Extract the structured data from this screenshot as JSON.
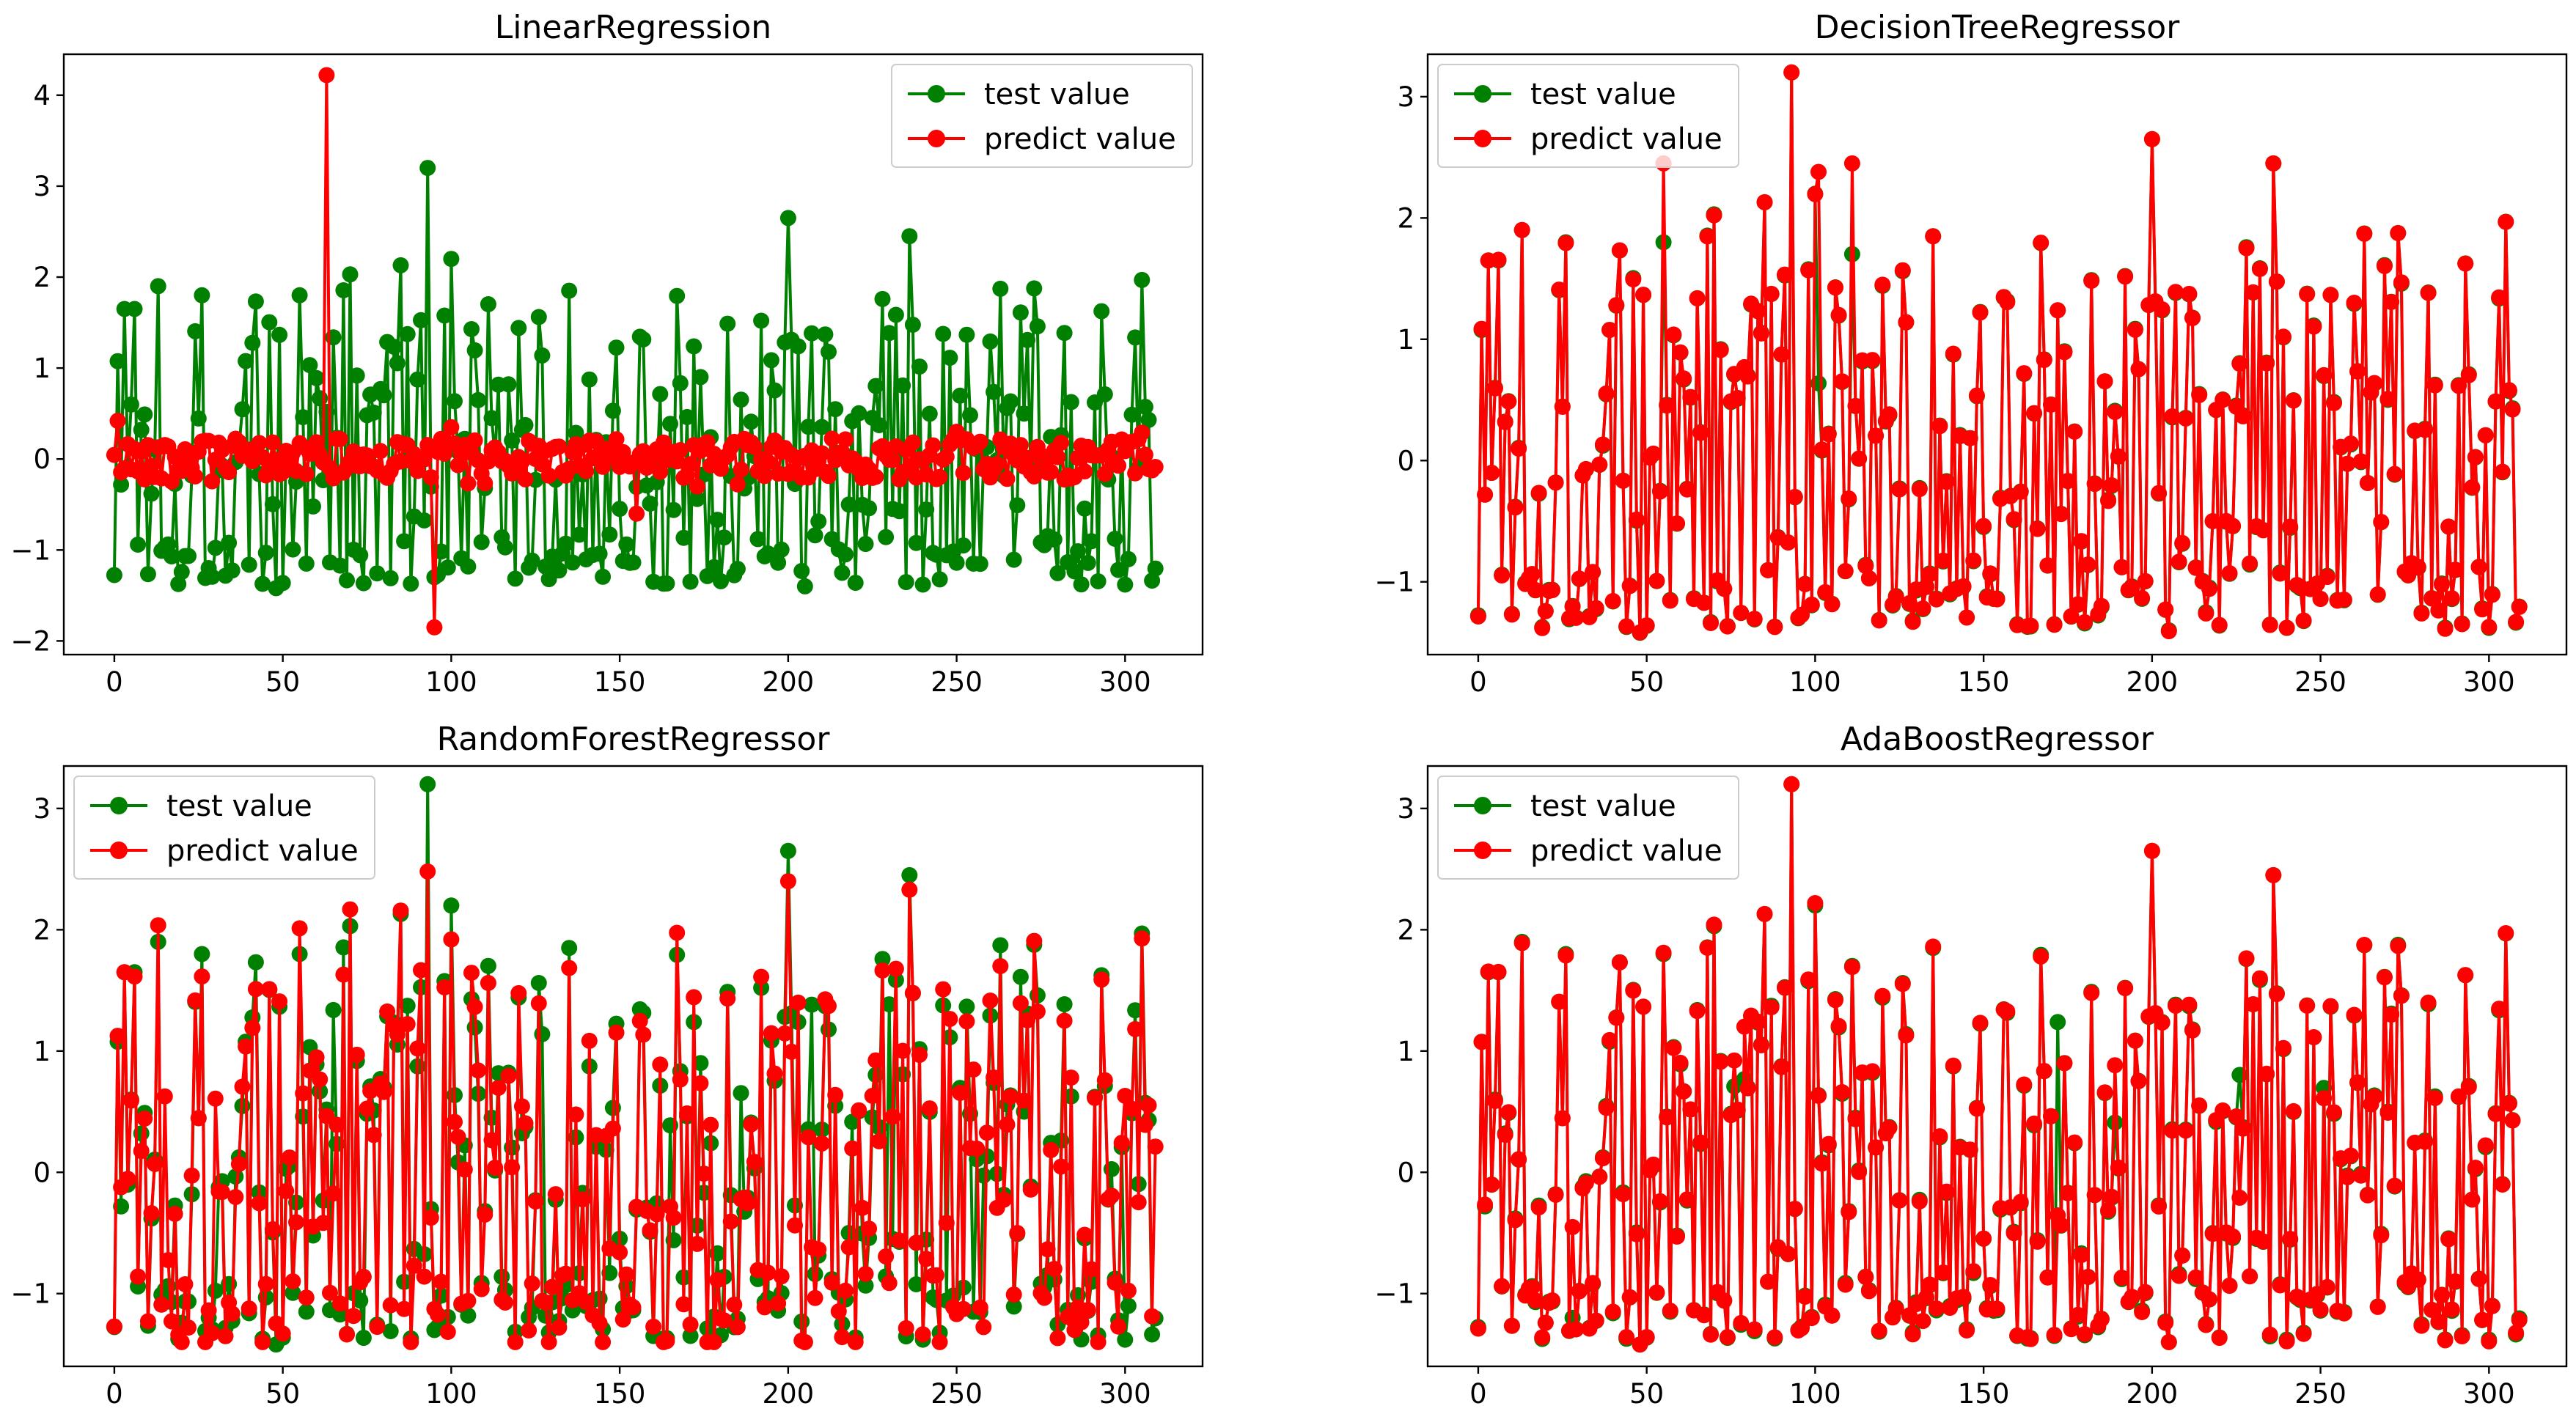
{
  "figure": {
    "colors": {
      "test": "#008000",
      "predict": "#ff0000"
    }
  },
  "chart_data": [
    {
      "type": "line",
      "title": "LinearRegression",
      "xlabel": "",
      "ylabel": "",
      "xlim": [
        -15,
        323
      ],
      "ylim": [
        -2.15,
        4.45
      ],
      "xticks": [
        0,
        50,
        100,
        150,
        200,
        250,
        300
      ],
      "yticks": [
        -2,
        -1,
        0,
        1,
        2,
        3,
        4
      ],
      "legend": "top-right",
      "n_points": 310,
      "series": [
        {
          "name": "test value",
          "color": "#008000",
          "marker": "circle",
          "highlights": [
            [
              3,
              1.65
            ],
            [
              6,
              1.65
            ],
            [
              13,
              1.9
            ],
            [
              26,
              1.8
            ],
            [
              55,
              1.8
            ],
            [
              70,
              2.03
            ],
            [
              85,
              2.13
            ],
            [
              93,
              3.2
            ],
            [
              100,
              2.2
            ],
            [
              135,
              1.85
            ],
            [
              200,
              2.65
            ],
            [
              236,
              2.45
            ],
            [
              48,
              -1.42
            ],
            [
              95,
              -1.3
            ],
            [
              160,
              -1.35
            ],
            [
              205,
              -1.4
            ],
            [
              240,
              -1.38
            ],
            [
              300,
              -1.38
            ]
          ],
          "range": [
            -1.42,
            3.2
          ]
        },
        {
          "name": "predict value",
          "color": "#ff0000",
          "marker": "circle",
          "highlights": [
            [
              63,
              4.22
            ],
            [
              95,
              -1.85
            ],
            [
              1,
              0.42
            ],
            [
              155,
              -0.6
            ],
            [
              100,
              0.35
            ],
            [
              250,
              0.3
            ]
          ],
          "range": [
            -1.85,
            4.22
          ]
        }
      ]
    },
    {
      "type": "line",
      "title": "DecisionTreeRegressor",
      "xlabel": "",
      "ylabel": "",
      "xlim": [
        -15,
        323
      ],
      "ylim": [
        -1.6,
        3.35
      ],
      "xticks": [
        0,
        50,
        100,
        150,
        200,
        250,
        300
      ],
      "yticks": [
        -1,
        0,
        1,
        2,
        3
      ],
      "legend": "top-left",
      "n_points": 310,
      "series": [
        {
          "name": "test value",
          "color": "#008000",
          "marker": "circle",
          "range": [
            -1.42,
            3.2
          ]
        },
        {
          "name": "predict value",
          "color": "#ff0000",
          "marker": "circle",
          "highlights": [
            [
              93,
              3.2
            ],
            [
              200,
              2.65
            ],
            [
              55,
              2.45
            ],
            [
              236,
              2.45
            ],
            [
              111,
              2.45
            ],
            [
              101,
              2.38
            ]
          ],
          "range": [
            -1.42,
            3.2
          ]
        }
      ]
    },
    {
      "type": "line",
      "title": "RandomForestRegressor",
      "xlabel": "",
      "ylabel": "",
      "xlim": [
        -15,
        323
      ],
      "ylim": [
        -1.6,
        3.35
      ],
      "xticks": [
        0,
        50,
        100,
        150,
        200,
        250,
        300
      ],
      "yticks": [
        -1,
        0,
        1,
        2,
        3
      ],
      "legend": "top-left",
      "n_points": 310,
      "series": [
        {
          "name": "test value",
          "color": "#008000",
          "marker": "circle",
          "highlights": [
            [
              93,
              3.2
            ],
            [
              200,
              2.65
            ],
            [
              236,
              2.47
            ],
            [
              100,
              2.2
            ],
            [
              85,
              2.13
            ],
            [
              70,
              2.03
            ]
          ],
          "range": [
            -1.42,
            3.2
          ]
        },
        {
          "name": "predict value",
          "color": "#ff0000",
          "marker": "circle",
          "highlights": [
            [
              93,
              2.48
            ],
            [
              200,
              2.4
            ],
            [
              236,
              2.33
            ],
            [
              100,
              1.92
            ],
            [
              3,
              1.65
            ]
          ],
          "range": [
            -1.4,
            2.48
          ]
        }
      ]
    },
    {
      "type": "line",
      "title": "AdaBoostRegressor",
      "xlabel": "",
      "ylabel": "",
      "xlim": [
        -15,
        323
      ],
      "ylim": [
        -1.6,
        3.35
      ],
      "xticks": [
        0,
        50,
        100,
        150,
        200,
        250,
        300
      ],
      "yticks": [
        -1,
        0,
        1,
        2,
        3
      ],
      "legend": "top-left",
      "n_points": 310,
      "series": [
        {
          "name": "test value",
          "color": "#008000",
          "marker": "circle",
          "range": [
            -1.42,
            3.2
          ]
        },
        {
          "name": "predict value",
          "color": "#ff0000",
          "marker": "circle",
          "highlights": [
            [
              93,
              3.2
            ],
            [
              200,
              2.65
            ],
            [
              236,
              2.45
            ],
            [
              100,
              2.22
            ],
            [
              85,
              2.13
            ]
          ],
          "range": [
            -1.42,
            3.2
          ]
        }
      ]
    }
  ]
}
